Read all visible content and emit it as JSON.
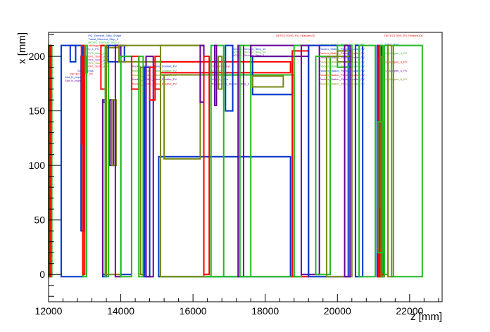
{
  "chart_data": {
    "type": "line",
    "title": "",
    "xlabel": "z [mm]",
    "ylabel": "x [mm]",
    "xlim": [
      12000,
      22900
    ],
    "ylim": [
      -25,
      222
    ],
    "xticks": [
      12000,
      14000,
      16000,
      18000,
      20000,
      22000
    ],
    "yticks": [
      0,
      50,
      100,
      150,
      200
    ],
    "grid": false,
    "legend": "none",
    "colors": {
      "blue": "#0033cc",
      "red": "#ff0000",
      "green": "#22bb22",
      "olive": "#778811",
      "purple": "#660099"
    },
    "volumes": [
      {
        "color": "green",
        "z": [
          12000,
          12090
        ],
        "x": [
          -2,
          210
        ]
      },
      {
        "color": "green",
        "z": [
          11990,
          12040
        ],
        "x": [
          185,
          210
        ]
      },
      {
        "color": "red",
        "z": [
          12020,
          12060
        ],
        "x": [
          -2,
          210
        ]
      },
      {
        "color": "blue",
        "z": [
          12350,
          12950
        ],
        "x": [
          -2,
          210
        ]
      },
      {
        "color": "blue",
        "z": [
          12600,
          12750
        ],
        "x": [
          195,
          210
        ]
      },
      {
        "color": "blue",
        "z": [
          12900,
          12980
        ],
        "x": [
          40,
          200
        ]
      },
      {
        "color": "green",
        "z": [
          12950,
          13050
        ],
        "x": [
          -2,
          200
        ]
      },
      {
        "color": "red",
        "z": [
          12950,
          13000
        ],
        "x": [
          0,
          200
        ]
      },
      {
        "color": "red",
        "z": [
          12910,
          12980
        ],
        "x": [
          120,
          210
        ]
      },
      {
        "color": "green",
        "z": [
          13020,
          13070
        ],
        "x": [
          185,
          210
        ]
      },
      {
        "color": "red",
        "z": [
          13450,
          13600
        ],
        "x": [
          170,
          210
        ]
      },
      {
        "color": "blue",
        "z": [
          13500,
          13600
        ],
        "x": [
          -2,
          158
        ]
      },
      {
        "color": "purple",
        "z": [
          13500,
          13600
        ],
        "x": [
          0,
          160
        ]
      },
      {
        "color": "green",
        "z": [
          13570,
          13660
        ],
        "x": [
          -2,
          210
        ]
      },
      {
        "color": "olive",
        "z": [
          13600,
          14000
        ],
        "x": [
          0,
          208
        ]
      },
      {
        "color": "blue",
        "z": [
          13650,
          14100
        ],
        "x": [
          195,
          210
        ]
      },
      {
        "color": "purple",
        "z": [
          13700,
          13800
        ],
        "x": [
          100,
          160
        ]
      },
      {
        "color": "olive",
        "z": [
          13750,
          13870
        ],
        "x": [
          100,
          160
        ]
      },
      {
        "color": "purple",
        "z": [
          13850,
          14000
        ],
        "x": [
          -2,
          210
        ]
      },
      {
        "color": "blue",
        "z": [
          14000,
          14300
        ],
        "x": [
          0,
          200
        ]
      },
      {
        "color": "green",
        "z": [
          14000,
          14300
        ],
        "x": [
          -2,
          200
        ]
      },
      {
        "color": "olive",
        "z": [
          13950,
          16300
        ],
        "x": [
          195,
          210
        ]
      },
      {
        "color": "red",
        "z": [
          14300,
          14500
        ],
        "x": [
          170,
          200
        ]
      },
      {
        "color": "green",
        "z": [
          14500,
          14620
        ],
        "x": [
          -2,
          200
        ]
      },
      {
        "color": "olive",
        "z": [
          14550,
          14680
        ],
        "x": [
          0,
          190
        ]
      },
      {
        "color": "blue",
        "z": [
          14650,
          14800
        ],
        "x": [
          -2,
          190
        ]
      },
      {
        "color": "purple",
        "z": [
          14700,
          14900
        ],
        "x": [
          -2,
          200
        ]
      },
      {
        "color": "red",
        "z": [
          14800,
          14950
        ],
        "x": [
          160,
          190
        ]
      },
      {
        "color": "red",
        "z": [
          14950,
          15100
        ],
        "x": [
          170,
          200
        ]
      },
      {
        "color": "red",
        "z": [
          15100,
          18700
        ],
        "x": [
          185,
          195
        ]
      },
      {
        "color": "blue",
        "z": [
          15050,
          18700
        ],
        "x": [
          -2,
          108
        ]
      },
      {
        "color": "green",
        "z": [
          15100,
          18800
        ],
        "x": [
          -2,
          183
        ]
      },
      {
        "color": "olive",
        "z": [
          15200,
          16200
        ],
        "x": [
          106,
          183
        ]
      },
      {
        "color": "olive",
        "z": [
          15100,
          16300
        ],
        "x": [
          -2,
          210
        ]
      },
      {
        "color": "purple",
        "z": [
          16200,
          16300
        ],
        "x": [
          158,
          210
        ]
      },
      {
        "color": "red",
        "z": [
          16300,
          16450
        ],
        "x": [
          0,
          200
        ]
      },
      {
        "color": "green",
        "z": [
          16500,
          16850
        ],
        "x": [
          -2,
          210
        ]
      },
      {
        "color": "purple",
        "z": [
          16600,
          16650
        ],
        "x": [
          155,
          210
        ]
      },
      {
        "color": "olive",
        "z": [
          16700,
          16800
        ],
        "x": [
          170,
          200
        ]
      },
      {
        "color": "blue",
        "z": [
          16900,
          17100
        ],
        "x": [
          150,
          210
        ]
      },
      {
        "color": "purple",
        "z": [
          17250,
          17400
        ],
        "x": [
          -2,
          210
        ]
      },
      {
        "color": "green",
        "z": [
          17300,
          17600
        ],
        "x": [
          -2,
          210
        ]
      },
      {
        "color": "blue",
        "z": [
          17650,
          18750
        ],
        "x": [
          165,
          200
        ]
      },
      {
        "color": "olive",
        "z": [
          17650,
          18500
        ],
        "x": [
          172,
          182
        ]
      },
      {
        "color": "red",
        "z": [
          18750,
          19200
        ],
        "x": [
          -2,
          205
        ]
      },
      {
        "color": "purple",
        "z": [
          17600,
          19200
        ],
        "x": [
          200,
          210
        ]
      },
      {
        "color": "green",
        "z": [
          18800,
          19000
        ],
        "x": [
          -2,
          210
        ]
      },
      {
        "color": "purple",
        "z": [
          19000,
          19500
        ],
        "x": [
          0,
          210
        ]
      },
      {
        "color": "blue",
        "z": [
          19200,
          20300
        ],
        "x": [
          -2,
          210
        ]
      },
      {
        "color": "green",
        "z": [
          19400,
          19800
        ],
        "x": [
          0,
          200
        ]
      },
      {
        "color": "olive",
        "z": [
          19700,
          20400
        ],
        "x": [
          -2,
          200
        ]
      },
      {
        "color": "green",
        "z": [
          20000,
          20400
        ],
        "x": [
          190,
          210
        ]
      },
      {
        "color": "olive",
        "z": [
          20000,
          20400
        ],
        "x": [
          195,
          205
        ]
      },
      {
        "color": "purple",
        "z": [
          20200,
          20350
        ],
        "x": [
          -2,
          210
        ]
      },
      {
        "color": "blue",
        "z": [
          20500,
          20700
        ],
        "x": [
          -2,
          210
        ]
      },
      {
        "color": "green",
        "z": [
          20600,
          21050
        ],
        "x": [
          -2,
          210
        ]
      },
      {
        "color": "blue",
        "z": [
          21100,
          21160
        ],
        "x": [
          -2,
          210
        ]
      },
      {
        "color": "red",
        "z": [
          21140,
          21200
        ],
        "x": [
          -2,
          210
        ]
      },
      {
        "color": "purple",
        "z": [
          21160,
          21230
        ],
        "x": [
          -2,
          210
        ]
      },
      {
        "color": "green",
        "z": [
          21180,
          21260
        ],
        "x": [
          -2,
          210
        ]
      },
      {
        "color": "red",
        "z": [
          21200,
          21290
        ],
        "x": [
          0,
          140
        ]
      },
      {
        "color": "olive",
        "z": [
          21210,
          21300
        ],
        "x": [
          -2,
          200
        ]
      },
      {
        "color": "green",
        "z": [
          21300,
          21400
        ],
        "x": [
          0,
          210
        ]
      },
      {
        "color": "olive",
        "z": [
          21400,
          21550
        ],
        "x": [
          -2,
          210
        ]
      },
      {
        "color": "green",
        "z": [
          21500,
          22350
        ],
        "x": [
          -2,
          210
        ]
      },
      {
        "color": "red",
        "z": [
          21130,
          21170
        ],
        "x": [
          -2,
          60
        ]
      },
      {
        "color": "green",
        "z": [
          21120,
          21260
        ],
        "x": [
          20,
          140
        ]
      }
    ],
    "labels": [
      {
        "text": "PQ_Element_Step_Shape",
        "color": "blue",
        "z": 13100,
        "x": 218
      },
      {
        "text": "Tubial_Element_Step_0",
        "color": "blue",
        "z": 13100,
        "x": 215
      },
      {
        "text": "BOX01_Element_Step_2",
        "color": "green",
        "z": 13100,
        "x": 212
      },
      {
        "text": "AbMagnet01_Element_Step_1",
        "color": "red",
        "z": 13100,
        "x": 209
      },
      {
        "text": "Step_1_PV",
        "color": "blue",
        "z": 13000,
        "x": 206
      },
      {
        "text": "TOF1_Scint_phys",
        "color": "green",
        "z": 13050,
        "x": 202
      },
      {
        "text": "TOF1_Scint_phys",
        "color": "red",
        "z": 13050,
        "x": 199
      },
      {
        "text": "TOF1_Scint_phys",
        "color": "purple",
        "z": 13050,
        "x": 196
      },
      {
        "text": "TOF1_Scint_phys",
        "color": "olive",
        "z": 13050,
        "x": 193
      },
      {
        "text": "TOF1_Scint_phys",
        "color": "red",
        "z": 13050,
        "x": 190
      },
      {
        "text": "Slot_N_phys",
        "color": "blue",
        "z": 12800,
        "x": 186
      },
      {
        "text": "DETECTORS_PV",
        "color": "red",
        "z": 12600,
        "x": 183
      },
      {
        "text": "Slot_N_phys",
        "color": "blue",
        "z": 12450,
        "x": 180
      },
      {
        "text": "Slot_N_phys",
        "color": "purple",
        "z": 12450,
        "x": 177
      },
      {
        "text": "Tracker_Station_Plane_Doublet_PV",
        "color": "blue",
        "z": 14300,
        "x": 190
      },
      {
        "text": "Tracker_Station_Plane_Doublet_PV",
        "color": "green",
        "z": 14300,
        "x": 186
      },
      {
        "text": "Tracker_Station_Plane_Doublet_PV",
        "color": "olive",
        "z": 14300,
        "x": 182
      },
      {
        "text": "Tracker_Station_Plane_Doublet_PV",
        "color": "purple",
        "z": 14300,
        "x": 178
      },
      {
        "text": "Tracker_Station_Plane_Doublet_PV",
        "color": "red",
        "z": 14300,
        "x": 174
      },
      {
        "text": "Cerenkov_phys",
        "color": "red",
        "z": 16500,
        "x": 190
      },
      {
        "text": "AFC_phys",
        "color": "green",
        "z": 16500,
        "x": 186
      },
      {
        "text": "Tracker_Station_Doublet_PV",
        "color": "olive",
        "z": 16500,
        "x": 182
      },
      {
        "text": "Magnet_phys",
        "color": "blue",
        "z": 16500,
        "x": 178
      },
      {
        "text": "AbMagnet01_Element_Step_3",
        "color": "purple",
        "z": 16500,
        "x": 174
      },
      {
        "text": "BOX01_Element_Step_10",
        "color": "blue",
        "z": 17100,
        "x": 206
      },
      {
        "text": "BOX01_Element_Step_10",
        "color": "green",
        "z": 17100,
        "x": 203
      },
      {
        "text": "BOX01_Element_Step_2",
        "color": "purple",
        "z": 17100,
        "x": 200
      },
      {
        "text": "DETECTORS_PV_Feature100",
        "color": "red",
        "z": 18300,
        "x": 218
      },
      {
        "text": "Tracker_Station_Plane_Doublet_PV",
        "color": "green",
        "z": 19500,
        "x": 210
      },
      {
        "text": "Tracker_Station_Plane_Doublet_PV",
        "color": "blue",
        "z": 19500,
        "x": 206
      },
      {
        "text": "Tracker_Station_Plane_Doublet_PV",
        "color": "red",
        "z": 19500,
        "x": 202
      },
      {
        "text": "Tracker_Station_Plane_Doublet_PV",
        "color": "purple",
        "z": 19500,
        "x": 198
      },
      {
        "text": "Tracker_Station_Plane_Doublet_PV",
        "color": "olive",
        "z": 19500,
        "x": 194
      },
      {
        "text": "Tracker_Station_Plane_Doublet_PV",
        "color": "green",
        "z": 19500,
        "x": 190
      },
      {
        "text": "Tracker_Station_Plane_Doublet_PV",
        "color": "blue",
        "z": 19500,
        "x": 186
      },
      {
        "text": "Tracker_Station_Plane_Doublet_PV",
        "color": "red",
        "z": 19500,
        "x": 182
      },
      {
        "text": "Tracker_Station_Plane_Doublet_PV",
        "color": "purple",
        "z": 19500,
        "x": 178
      },
      {
        "text": "Tracker_Station_Plane_Doublet_PV",
        "color": "olive",
        "z": 19500,
        "x": 174
      },
      {
        "text": "DETECTORS_PV_Feature100",
        "color": "red",
        "z": 21300,
        "x": 218
      },
      {
        "text": "TOF2_phys",
        "color": "blue",
        "z": 21300,
        "x": 210
      },
      {
        "text": "KL_Magnet_3_PV",
        "color": "green",
        "z": 21300,
        "x": 202
      },
      {
        "text": "KL_Magnet_4_PV",
        "color": "red",
        "z": 21300,
        "x": 194
      },
      {
        "text": "KL_Magnet_5_PV",
        "color": "purple",
        "z": 21300,
        "x": 186
      },
      {
        "text": "KL_Magnet_6_PV",
        "color": "olive",
        "z": 21300,
        "x": 178
      }
    ]
  }
}
